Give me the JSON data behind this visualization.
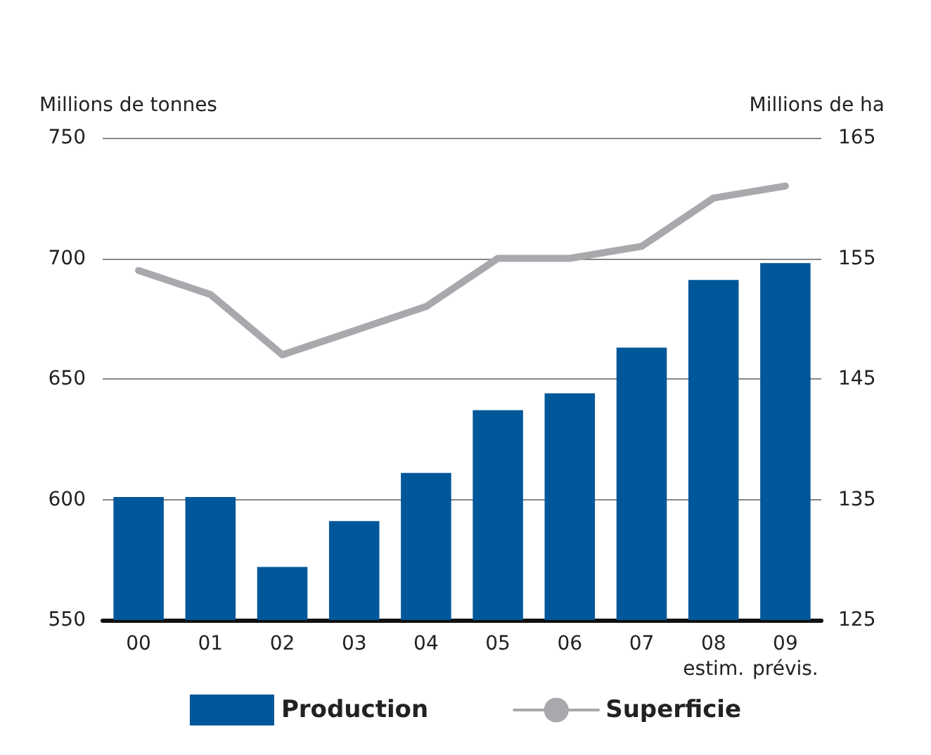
{
  "chart_data": {
    "type": "bar",
    "ylabel": "Millions de tonnes",
    "y2label": "Millions de ha",
    "categories": [
      "00",
      "01",
      "02",
      "03",
      "04",
      "05",
      "06",
      "07",
      "08\nestim.",
      "09\nprévis."
    ],
    "series": [
      {
        "name": "Production",
        "color": "#00579a",
        "values": [
          601,
          601,
          572,
          591,
          611,
          637,
          644,
          663,
          691,
          698
        ]
      },
      {
        "name": "Superficie",
        "type": "line",
        "axis": "y2",
        "color": "#a7a9ac",
        "values": [
          154,
          152,
          147,
          149,
          151,
          155,
          155,
          156,
          160,
          161
        ]
      }
    ],
    "ylim": [
      550,
      750
    ],
    "yticks": [
      550,
      600,
      650,
      700,
      750
    ],
    "y2lim": [
      125,
      165
    ],
    "y2ticks": [
      125,
      135,
      145,
      155,
      165
    ],
    "grid": "y",
    "legend": "bottom",
    "marker": "none"
  }
}
